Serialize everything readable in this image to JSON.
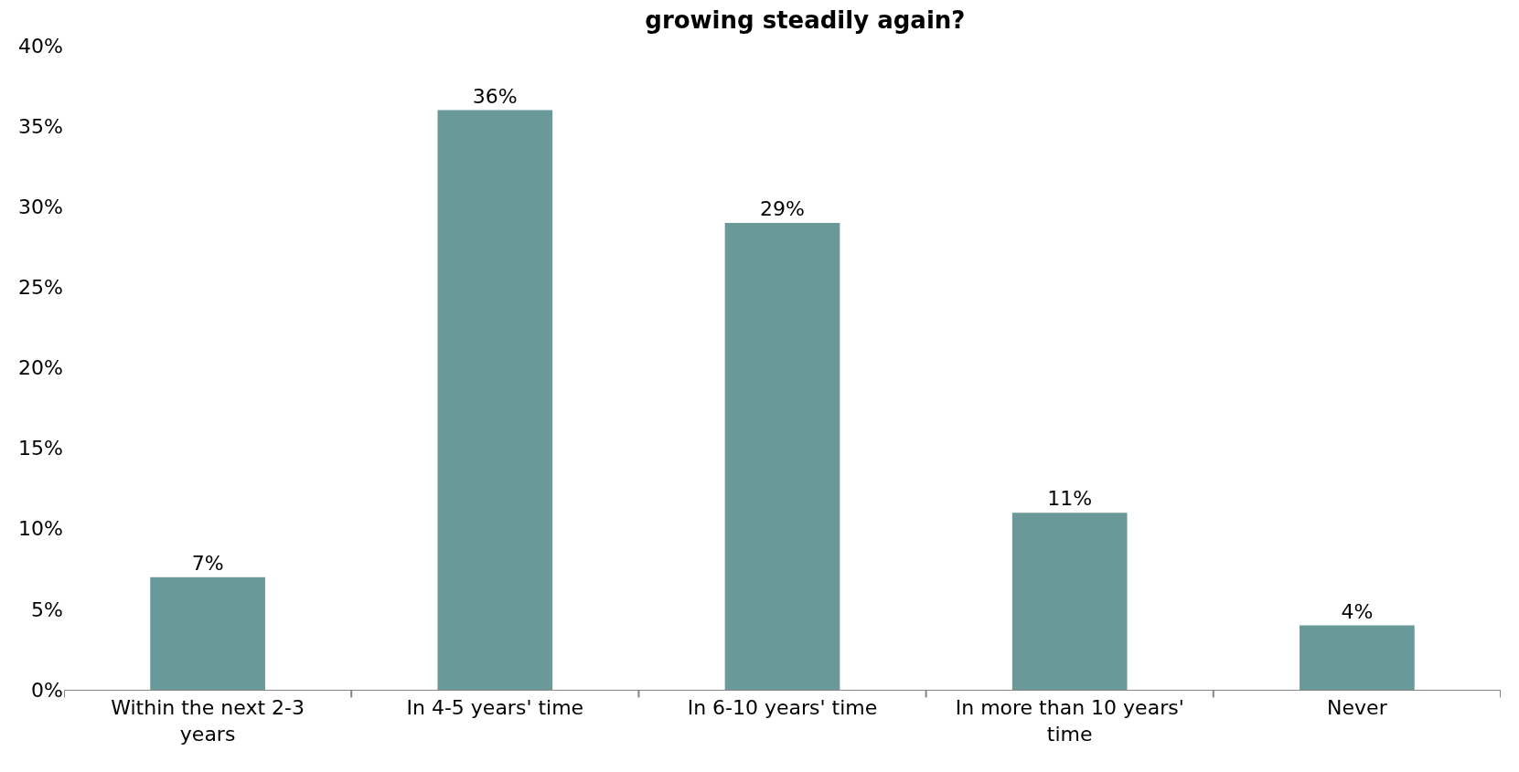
{
  "chart_data": {
    "type": "bar",
    "title": "growing steadily again?",
    "categories": [
      "Within the next 2-3 years",
      "In 4-5 years' time",
      "In 6-10 years' time",
      "In more than 10 years' time",
      "Never"
    ],
    "values": [
      7,
      36,
      29,
      11,
      4
    ],
    "color": "#699a99",
    "ylim": [
      0,
      40
    ],
    "yticks": [
      {
        "value": 0,
        "label": "0%"
      },
      {
        "value": 5,
        "label": "5%"
      },
      {
        "value": 10,
        "label": "10%"
      },
      {
        "value": 15,
        "label": "15%"
      },
      {
        "value": 20,
        "label": "20%"
      },
      {
        "value": 25,
        "label": "25%"
      },
      {
        "value": 30,
        "label": "30%"
      },
      {
        "value": 35,
        "label": "35%"
      },
      {
        "value": 40,
        "label": "40%"
      }
    ],
    "value_labels": [
      "7%",
      "36%",
      "29%",
      "11%",
      "4%"
    ],
    "grid": false
  }
}
